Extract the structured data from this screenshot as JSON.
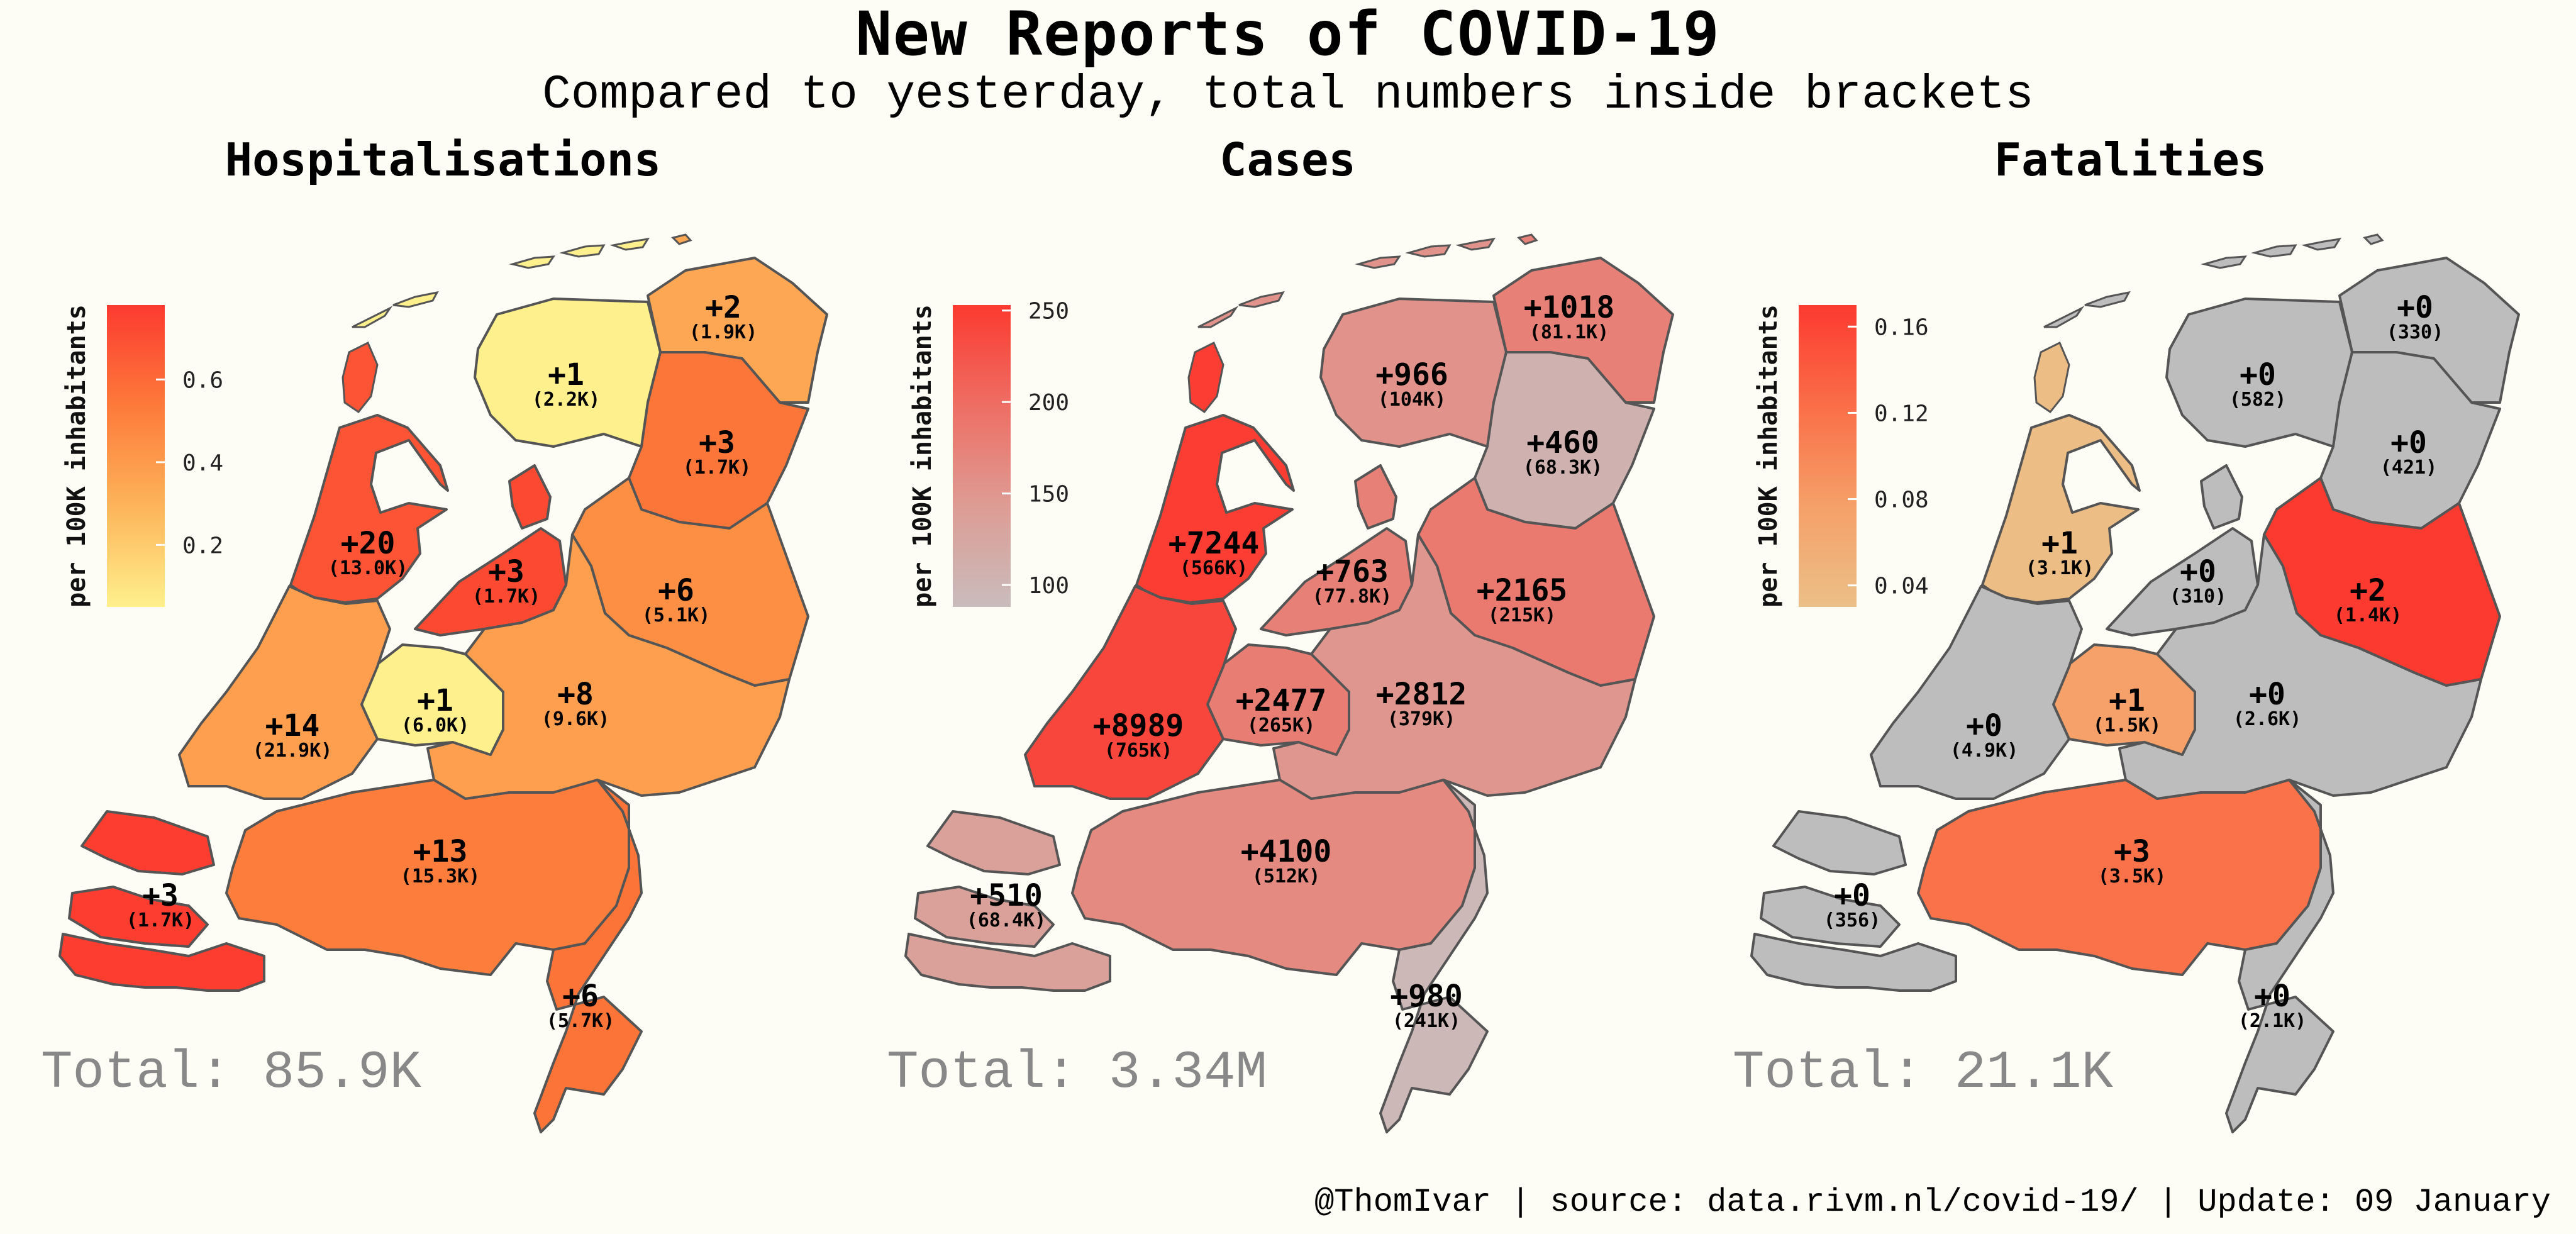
{
  "header": {
    "title": "New Reports of COVID-19",
    "subtitle": "Compared to yesterday, total numbers inside brackets"
  },
  "footer": {
    "caption": "@ThomIvar | source: data.rivm.nl/covid-19/ | Update: 09 January"
  },
  "colors": {
    "background": "#fdfdf6",
    "border": "#555555",
    "no_change": "#bdbdbd",
    "total_text": "#888888"
  },
  "chart_data": [
    {
      "type": "choropleth",
      "title": "Hospitalisations",
      "legend_label": "per 100K inhabitants",
      "legend_ticks": [
        "0.6",
        "0.4",
        "0.2"
      ],
      "legend_range": [
        0.05,
        0.78
      ],
      "gradient": [
        "#fef08c",
        "#fdb45a",
        "#fd7a3a",
        "#fc3a30"
      ],
      "total_label": "Total: 85.9K",
      "regions": [
        {
          "name": "Groningen",
          "new": "+2",
          "total": "(1.9K)",
          "value": 0.35
        },
        {
          "name": "Friesland",
          "new": "+1",
          "total": "(2.2K)",
          "value": 0.05
        },
        {
          "name": "Drenthe",
          "new": "+3",
          "total": "(1.7K)",
          "value": 0.55
        },
        {
          "name": "Overijssel",
          "new": "+6",
          "total": "(5.1K)",
          "value": 0.45
        },
        {
          "name": "Flevoland",
          "new": "+3",
          "total": "(1.7K)",
          "value": 0.72
        },
        {
          "name": "Noord-Holland",
          "new": "+20",
          "total": "(13.0K)",
          "value": 0.68
        },
        {
          "name": "Gelderland",
          "new": "+8",
          "total": "(9.6K)",
          "value": 0.38
        },
        {
          "name": "Utrecht",
          "new": "+1",
          "total": "(6.0K)",
          "value": 0.05
        },
        {
          "name": "Zuid-Holland",
          "new": "+14",
          "total": "(21.9K)",
          "value": 0.38
        },
        {
          "name": "Noord-Brabant",
          "new": "+13",
          "total": "(15.3K)",
          "value": 0.52
        },
        {
          "name": "Zeeland",
          "new": "+3",
          "total": "(1.7K)",
          "value": 0.77
        },
        {
          "name": "Limburg",
          "new": "+6",
          "total": "(5.7K)",
          "value": 0.56
        }
      ]
    },
    {
      "type": "choropleth",
      "title": "Cases",
      "legend_label": "per 100K inhabitants",
      "legend_ticks": [
        "250",
        "200",
        "150",
        "100"
      ],
      "legend_range": [
        88,
        253
      ],
      "gradient": [
        "#c9bcbc",
        "#dd9c94",
        "#ee6e64",
        "#fc3a30"
      ],
      "total_label": "Total: 3.34M",
      "regions": [
        {
          "name": "Groningen",
          "new": "+1018",
          "total": "(81.1K)",
          "value": 175
        },
        {
          "name": "Friesland",
          "new": "+966",
          "total": "(104K)",
          "value": 155
        },
        {
          "name": "Drenthe",
          "new": "+460",
          "total": "(68.3K)",
          "value": 105
        },
        {
          "name": "Overijssel",
          "new": "+2165",
          "total": "(215K)",
          "value": 185
        },
        {
          "name": "Flevoland",
          "new": "+763",
          "total": "(77.8K)",
          "value": 175
        },
        {
          "name": "Noord-Holland",
          "new": "+7244",
          "total": "(566K)",
          "value": 250
        },
        {
          "name": "Gelderland",
          "new": "+2812",
          "total": "(379K)",
          "value": 150
        },
        {
          "name": "Utrecht",
          "new": "+2477",
          "total": "(265K)",
          "value": 180
        },
        {
          "name": "Zuid-Holland",
          "new": "+8989",
          "total": "(765K)",
          "value": 240
        },
        {
          "name": "Noord-Brabant",
          "new": "+4100",
          "total": "(512K)",
          "value": 165
        },
        {
          "name": "Zeeland",
          "new": "+510",
          "total": "(68.4K)",
          "value": 135
        },
        {
          "name": "Limburg",
          "new": "+980",
          "total": "(241K)",
          "value": 95
        }
      ]
    },
    {
      "type": "choropleth",
      "title": "Fatalities",
      "legend_label": "per 100K inhabitants",
      "legend_ticks": [
        "0.16",
        "0.12",
        "0.08",
        "0.04"
      ],
      "legend_range": [
        0.03,
        0.17
      ],
      "gradient": [
        "#ebc088",
        "#f5a068",
        "#fa6e48",
        "#fc3a30"
      ],
      "total_label": "Total: 21.1K",
      "regions": [
        {
          "name": "Groningen",
          "new": "+0",
          "total": "(330)",
          "value": 0
        },
        {
          "name": "Friesland",
          "new": "+0",
          "total": "(582)",
          "value": 0
        },
        {
          "name": "Drenthe",
          "new": "+0",
          "total": "(421)",
          "value": 0
        },
        {
          "name": "Overijssel",
          "new": "+2",
          "total": "(1.4K)",
          "value": 0.17
        },
        {
          "name": "Flevoland",
          "new": "+0",
          "total": "(310)",
          "value": 0
        },
        {
          "name": "Noord-Holland",
          "new": "+1",
          "total": "(3.1K)",
          "value": 0.035
        },
        {
          "name": "Gelderland",
          "new": "+0",
          "total": "(2.6K)",
          "value": 0
        },
        {
          "name": "Utrecht",
          "new": "+1",
          "total": "(1.5K)",
          "value": 0.075
        },
        {
          "name": "Zuid-Holland",
          "new": "+0",
          "total": "(4.9K)",
          "value": 0
        },
        {
          "name": "Noord-Brabant",
          "new": "+3",
          "total": "(3.5K)",
          "value": 0.12
        },
        {
          "name": "Zeeland",
          "new": "+0",
          "total": "(356)",
          "value": 0
        },
        {
          "name": "Limburg",
          "new": "+0",
          "total": "(2.1K)",
          "value": 0
        }
      ]
    }
  ]
}
